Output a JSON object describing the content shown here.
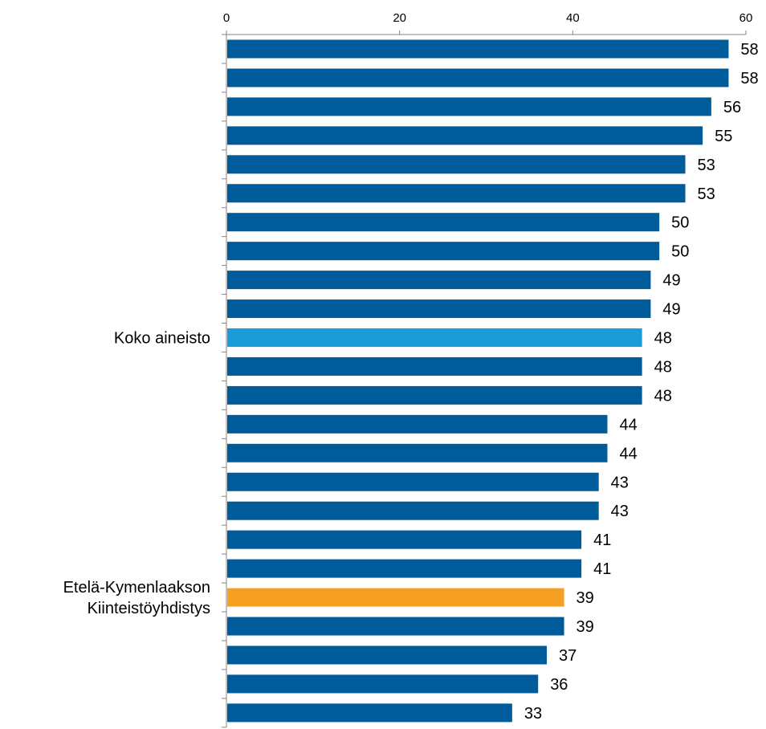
{
  "chart_data": {
    "type": "bar",
    "orientation": "horizontal",
    "xlim": [
      0,
      60
    ],
    "x_ticks": [
      0,
      20,
      40,
      60
    ],
    "x_axis_position": "top",
    "grid": false,
    "legend": "none",
    "categories": [
      "",
      "",
      "",
      "",
      "",
      "",
      "",
      "",
      "",
      "",
      "Koko aineisto",
      "",
      "",
      "",
      "",
      "",
      "",
      "",
      "",
      "Etelä-Kymenlaakson Kiinteistöyhdistys",
      "",
      "",
      "",
      ""
    ],
    "category_label_lines": [
      [],
      [],
      [],
      [],
      [],
      [],
      [],
      [],
      [],
      [],
      [
        "Koko aineisto"
      ],
      [],
      [],
      [],
      [],
      [],
      [],
      [],
      [],
      [
        "Etelä-Kymenlaakson",
        "Kiinteistöyhdistys"
      ],
      [],
      [],
      [],
      []
    ],
    "values": [
      58,
      58,
      56,
      55,
      53,
      53,
      50,
      50,
      49,
      49,
      48,
      48,
      48,
      44,
      44,
      43,
      43,
      41,
      41,
      39,
      39,
      37,
      36,
      33
    ],
    "value_labels": [
      "58",
      "58",
      "56",
      "55",
      "53",
      "53",
      "50",
      "50",
      "49",
      "49",
      "48",
      "48",
      "48",
      "44",
      "44",
      "43",
      "43",
      "41",
      "41",
      "39",
      "39",
      "37",
      "36",
      "33"
    ],
    "colors": {
      "default": "#005b9a",
      "highlight_total": "#1b9bd7",
      "highlight_own": "#f5a022",
      "axis": "#868686"
    },
    "highlight": {
      "10": "highlight_total",
      "19": "highlight_own"
    }
  }
}
